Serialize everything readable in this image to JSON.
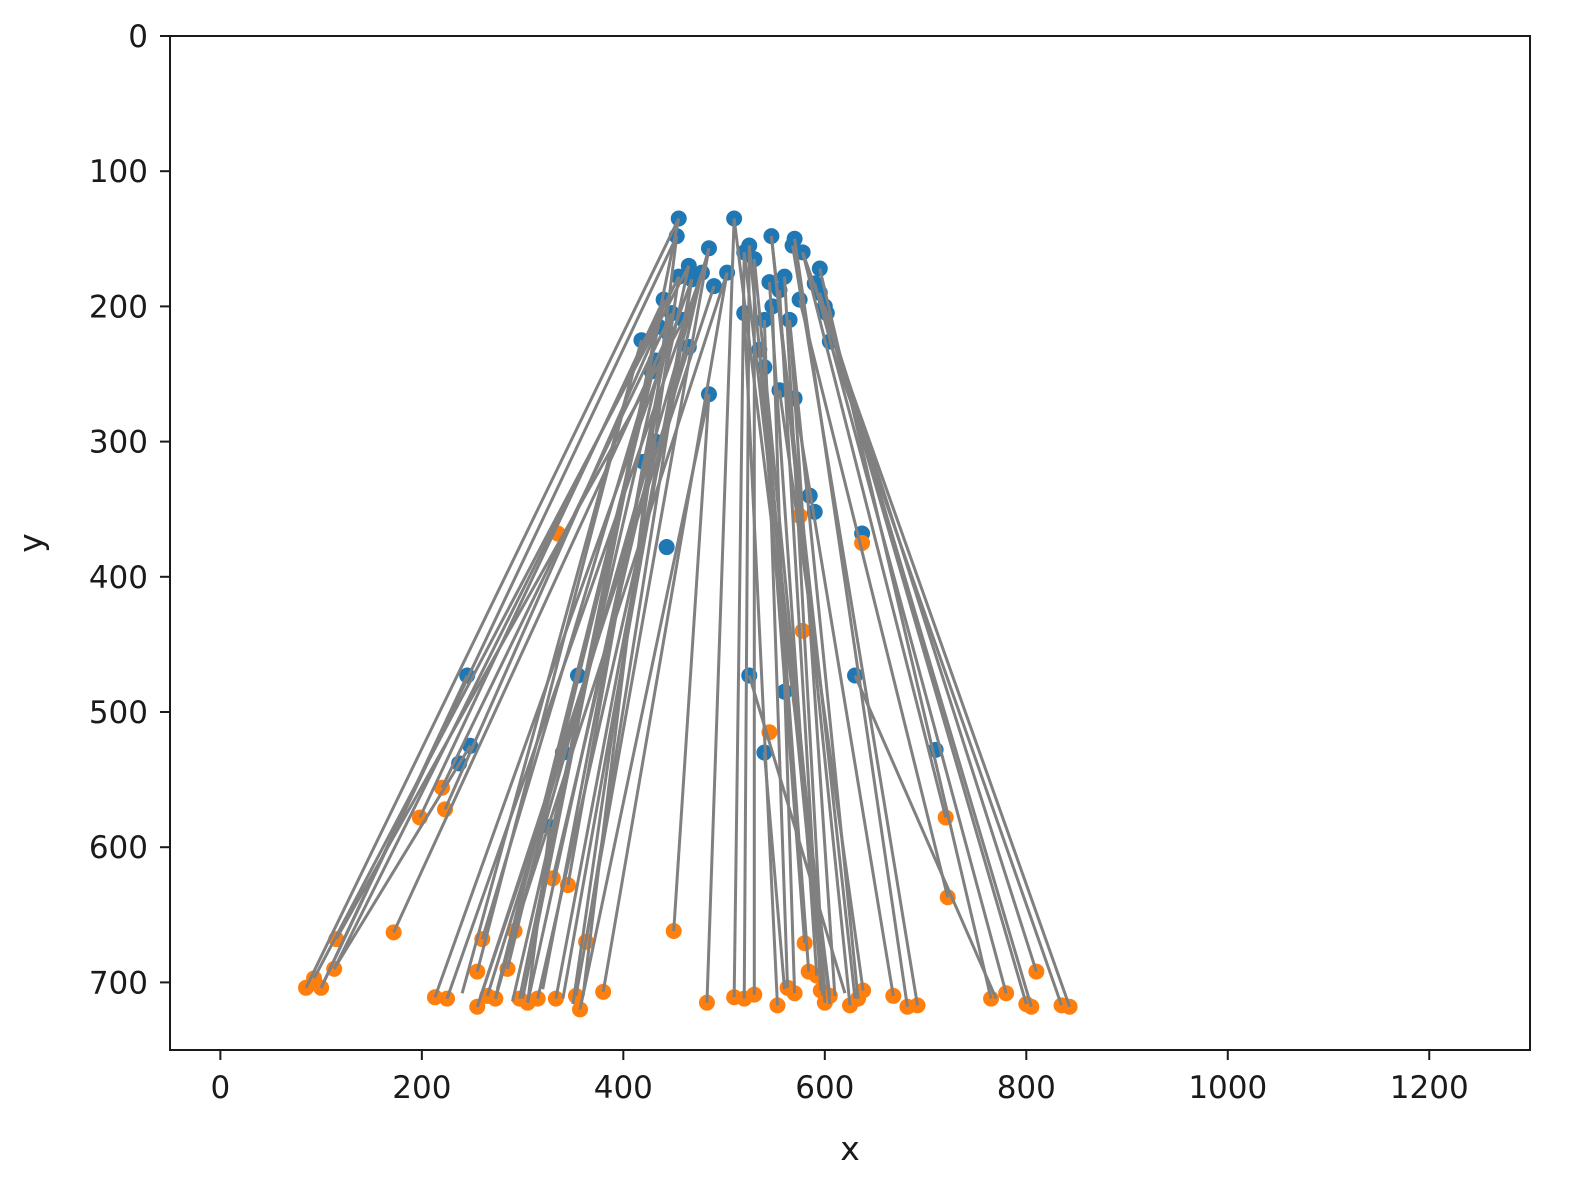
{
  "chart_data": {
    "type": "scatter",
    "title": "",
    "xlabel": "x",
    "ylabel": "y",
    "xlim": [
      -50,
      1300
    ],
    "ylim": [
      750,
      0
    ],
    "y_inverted": true,
    "grid": false,
    "legend": "none",
    "xticks": [
      {
        "value": 0,
        "label": "0"
      },
      {
        "value": 200,
        "label": "200"
      },
      {
        "value": 400,
        "label": "400"
      },
      {
        "value": 600,
        "label": "600"
      },
      {
        "value": 800,
        "label": "800"
      },
      {
        "value": 1000,
        "label": "1000"
      },
      {
        "value": 1200,
        "label": "1200"
      }
    ],
    "yticks": [
      {
        "value": 0,
        "label": "0"
      },
      {
        "value": 100,
        "label": "100"
      },
      {
        "value": 200,
        "label": "200"
      },
      {
        "value": 300,
        "label": "300"
      },
      {
        "value": 400,
        "label": "400"
      },
      {
        "value": 500,
        "label": "500"
      },
      {
        "value": 600,
        "label": "600"
      },
      {
        "value": 700,
        "label": "700"
      }
    ],
    "colors": {
      "series_a": "#1f77b4",
      "series_b": "#ff7f0e",
      "connector": "#808080",
      "axes": "#1a1a1a"
    },
    "series": [
      {
        "color": "#1f77b4",
        "points": [
          [
            455,
            135
          ],
          [
            510,
            135
          ],
          [
            453,
            148
          ],
          [
            547,
            148
          ],
          [
            570,
            150
          ],
          [
            568,
            155
          ],
          [
            485,
            157
          ],
          [
            578,
            160
          ],
          [
            520,
            160
          ],
          [
            525,
            155
          ],
          [
            530,
            165
          ],
          [
            465,
            170
          ],
          [
            478,
            175
          ],
          [
            455,
            178
          ],
          [
            468,
            180
          ],
          [
            503,
            175
          ],
          [
            595,
            172
          ],
          [
            560,
            178
          ],
          [
            545,
            182
          ],
          [
            490,
            185
          ],
          [
            555,
            188
          ],
          [
            595,
            190
          ],
          [
            590,
            183
          ],
          [
            600,
            200
          ],
          [
            440,
            195
          ],
          [
            448,
            205
          ],
          [
            460,
            210
          ],
          [
            435,
            215
          ],
          [
            445,
            220
          ],
          [
            520,
            205
          ],
          [
            540,
            210
          ],
          [
            548,
            200
          ],
          [
            575,
            195
          ],
          [
            565,
            210
          ],
          [
            602,
            205
          ],
          [
            418,
            225
          ],
          [
            465,
            230
          ],
          [
            535,
            232
          ],
          [
            605,
            226
          ],
          [
            540,
            245
          ],
          [
            428,
            248
          ],
          [
            432,
            240
          ],
          [
            555,
            262
          ],
          [
            485,
            265
          ],
          [
            570,
            268
          ],
          [
            432,
            300
          ],
          [
            420,
            315
          ],
          [
            585,
            340
          ],
          [
            590,
            352
          ],
          [
            637,
            368
          ],
          [
            443,
            378
          ],
          [
            245,
            473
          ],
          [
            355,
            473
          ],
          [
            525,
            473
          ],
          [
            630,
            473
          ],
          [
            560,
            485
          ],
          [
            248,
            525
          ],
          [
            237,
            538
          ],
          [
            340,
            530
          ],
          [
            540,
            530
          ],
          [
            710,
            528
          ],
          [
            327,
            585
          ]
        ]
      },
      {
        "color": "#ff7f0e",
        "points": [
          [
            85,
            704
          ],
          [
            100,
            704
          ],
          [
            93,
            697
          ],
          [
            113,
            690
          ],
          [
            115,
            668
          ],
          [
            172,
            663
          ],
          [
            198,
            578
          ],
          [
            220,
            556
          ],
          [
            223,
            572
          ],
          [
            213,
            711
          ],
          [
            225,
            712
          ],
          [
            255,
            718
          ],
          [
            265,
            710
          ],
          [
            273,
            712
          ],
          [
            255,
            692
          ],
          [
            260,
            668
          ],
          [
            285,
            690
          ],
          [
            292,
            662
          ],
          [
            297,
            712
          ],
          [
            305,
            715
          ],
          [
            315,
            712
          ],
          [
            333,
            712
          ],
          [
            330,
            623
          ],
          [
            345,
            628
          ],
          [
            335,
            368
          ],
          [
            353,
            710
          ],
          [
            357,
            720
          ],
          [
            363,
            670
          ],
          [
            380,
            707
          ],
          [
            450,
            662
          ],
          [
            483,
            715
          ],
          [
            510,
            711
          ],
          [
            520,
            712
          ],
          [
            530,
            709
          ],
          [
            545,
            515
          ],
          [
            553,
            717
          ],
          [
            563,
            704
          ],
          [
            570,
            708
          ],
          [
            575,
            355
          ],
          [
            578,
            440
          ],
          [
            580,
            671
          ],
          [
            584,
            692
          ],
          [
            592,
            695
          ],
          [
            596,
            706
          ],
          [
            600,
            715
          ],
          [
            605,
            710
          ],
          [
            625,
            717
          ],
          [
            633,
            712
          ],
          [
            638,
            706
          ],
          [
            637,
            375
          ],
          [
            668,
            710
          ],
          [
            682,
            718
          ],
          [
            692,
            717
          ],
          [
            720,
            578
          ],
          [
            722,
            637
          ],
          [
            765,
            712
          ],
          [
            780,
            708
          ],
          [
            800,
            716
          ],
          [
            805,
            718
          ],
          [
            810,
            692
          ],
          [
            835,
            717
          ],
          [
            843,
            718
          ]
        ]
      }
    ],
    "connections": [
      [
        [
          455,
          135
        ],
        [
          85,
          704
        ]
      ],
      [
        [
          453,
          148
        ],
        [
          100,
          704
        ]
      ],
      [
        [
          465,
          170
        ],
        [
          93,
          697
        ]
      ],
      [
        [
          455,
          178
        ],
        [
          113,
          690
        ]
      ],
      [
        [
          460,
          210
        ],
        [
          115,
          668
        ]
      ],
      [
        [
          445,
          220
        ],
        [
          172,
          663
        ]
      ],
      [
        [
          440,
          195
        ],
        [
          198,
          578
        ]
      ],
      [
        [
          448,
          205
        ],
        [
          220,
          556
        ]
      ],
      [
        [
          435,
          215
        ],
        [
          223,
          572
        ]
      ],
      [
        [
          468,
          180
        ],
        [
          213,
          711
        ]
      ],
      [
        [
          478,
          175
        ],
        [
          225,
          712
        ]
      ],
      [
        [
          490,
          185
        ],
        [
          255,
          718
        ]
      ],
      [
        [
          465,
          230
        ],
        [
          265,
          710
        ]
      ],
      [
        [
          485,
          157
        ],
        [
          273,
          712
        ]
      ],
      [
        [
          418,
          225
        ],
        [
          255,
          692
        ]
      ],
      [
        [
          428,
          248
        ],
        [
          260,
          668
        ]
      ],
      [
        [
          432,
          240
        ],
        [
          285,
          690
        ]
      ],
      [
        [
          503,
          175
        ],
        [
          292,
          662
        ]
      ],
      [
        [
          455,
          135
        ],
        [
          297,
          712
        ]
      ],
      [
        [
          465,
          170
        ],
        [
          305,
          715
        ]
      ],
      [
        [
          478,
          175
        ],
        [
          315,
          712
        ]
      ],
      [
        [
          468,
          180
        ],
        [
          333,
          712
        ]
      ],
      [
        [
          432,
          300
        ],
        [
          330,
          623
        ]
      ],
      [
        [
          420,
          315
        ],
        [
          345,
          628
        ]
      ],
      [
        [
          485,
          157
        ],
        [
          353,
          710
        ]
      ],
      [
        [
          485,
          265
        ],
        [
          357,
          720
        ]
      ],
      [
        [
          468,
          180
        ],
        [
          363,
          670
        ]
      ],
      [
        [
          503,
          175
        ],
        [
          380,
          707
        ]
      ],
      [
        [
          485,
          265
        ],
        [
          450,
          662
        ]
      ],
      [
        [
          510,
          135
        ],
        [
          483,
          715
        ]
      ],
      [
        [
          520,
          160
        ],
        [
          510,
          711
        ]
      ],
      [
        [
          525,
          155
        ],
        [
          520,
          712
        ]
      ],
      [
        [
          530,
          165
        ],
        [
          530,
          709
        ]
      ],
      [
        [
          520,
          205
        ],
        [
          553,
          717
        ]
      ],
      [
        [
          540,
          210
        ],
        [
          563,
          704
        ]
      ],
      [
        [
          548,
          200
        ],
        [
          570,
          708
        ]
      ],
      [
        [
          535,
          232
        ],
        [
          580,
          671
        ]
      ],
      [
        [
          540,
          245
        ],
        [
          584,
          692
        ]
      ],
      [
        [
          545,
          182
        ],
        [
          592,
          695
        ]
      ],
      [
        [
          555,
          188
        ],
        [
          596,
          706
        ]
      ],
      [
        [
          560,
          178
        ],
        [
          600,
          715
        ]
      ],
      [
        [
          510,
          135
        ],
        [
          605,
          710
        ]
      ],
      [
        [
          547,
          148
        ],
        [
          625,
          717
        ]
      ],
      [
        [
          565,
          210
        ],
        [
          633,
          712
        ]
      ],
      [
        [
          555,
          262
        ],
        [
          638,
          706
        ]
      ],
      [
        [
          570,
          268
        ],
        [
          668,
          710
        ]
      ],
      [
        [
          570,
          150
        ],
        [
          682,
          718
        ]
      ],
      [
        [
          568,
          155
        ],
        [
          692,
          717
        ]
      ],
      [
        [
          578,
          160
        ],
        [
          720,
          578
        ]
      ],
      [
        [
          575,
          195
        ],
        [
          722,
          637
        ]
      ],
      [
        [
          595,
          172
        ],
        [
          765,
          712
        ]
      ],
      [
        [
          590,
          183
        ],
        [
          780,
          708
        ]
      ],
      [
        [
          595,
          190
        ],
        [
          800,
          716
        ]
      ],
      [
        [
          600,
          200
        ],
        [
          805,
          718
        ]
      ],
      [
        [
          602,
          205
        ],
        [
          810,
          692
        ]
      ],
      [
        [
          605,
          226
        ],
        [
          835,
          717
        ]
      ],
      [
        [
          578,
          160
        ],
        [
          843,
          718
        ]
      ],
      [
        [
          245,
          473
        ],
        [
          100,
          704
        ]
      ],
      [
        [
          248,
          525
        ],
        [
          113,
          690
        ]
      ],
      [
        [
          340,
          530
        ],
        [
          255,
          718
        ]
      ],
      [
        [
          355,
          473
        ],
        [
          273,
          712
        ]
      ],
      [
        [
          327,
          585
        ],
        [
          305,
          715
        ]
      ],
      [
        [
          440,
          195
        ],
        [
          300,
          712
        ]
      ],
      [
        [
          445,
          220
        ],
        [
          320,
          705
        ]
      ],
      [
        [
          460,
          210
        ],
        [
          340,
          712
        ]
      ],
      [
        [
          453,
          148
        ],
        [
          360,
          710
        ]
      ],
      [
        [
          418,
          225
        ],
        [
          240,
          708
        ]
      ],
      [
        [
          432,
          240
        ],
        [
          275,
          705
        ]
      ],
      [
        [
          448,
          205
        ],
        [
          290,
          714
        ]
      ],
      [
        [
          455,
          178
        ],
        [
          350,
          716
        ]
      ],
      [
        [
          525,
          473
        ],
        [
          620,
          708
        ]
      ],
      [
        [
          630,
          473
        ],
        [
          770,
          712
        ]
      ],
      [
        [
          540,
          530
        ],
        [
          560,
          705
        ]
      ],
      [
        [
          525,
          155
        ],
        [
          598,
          710
        ]
      ],
      [
        [
          520,
          160
        ],
        [
          605,
          716
        ]
      ],
      [
        [
          530,
          165
        ],
        [
          600,
          705
        ]
      ],
      [
        [
          547,
          148
        ],
        [
          630,
          712
        ]
      ],
      [
        [
          565,
          210
        ],
        [
          610,
          710
        ]
      ]
    ]
  }
}
